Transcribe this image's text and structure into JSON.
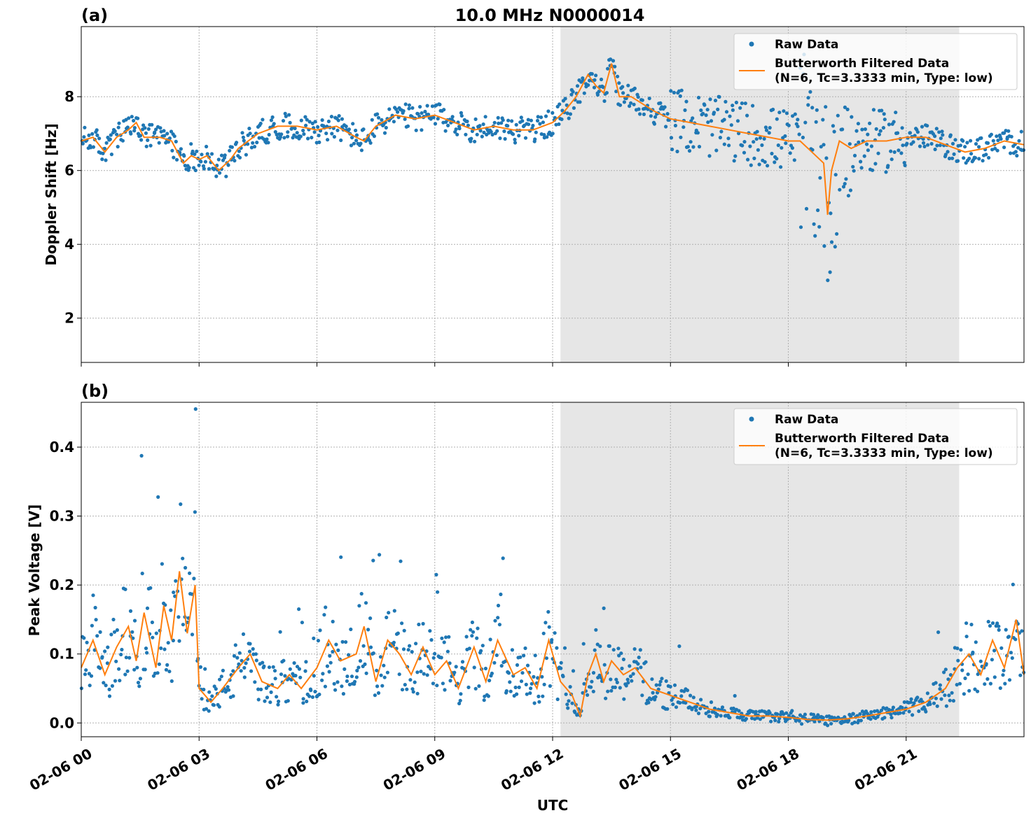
{
  "figure": {
    "suptitle": "10.0 MHz N0000014",
    "xlabel": "UTC",
    "x_ticklabels": [
      "02-06 00",
      "02-06 03",
      "02-06 06",
      "02-06 09",
      "02-06 12",
      "02-06 15",
      "02-06 18",
      "02-06 21"
    ],
    "colors": {
      "raw": "#1f77b4",
      "filtered": "#ff7f0e",
      "shade": "#e6e6e6",
      "grid": "#b0b0b0"
    }
  },
  "chart_data": [
    {
      "type": "scatter",
      "panel_label": "(a)",
      "ylabel": "Doppler Shift [Hz]",
      "xlim": [
        0,
        24
      ],
      "ylim": [
        0.8,
        9.9
      ],
      "yticks": [
        2,
        4,
        6,
        8
      ],
      "x_unit": "hours UTC on 02-06",
      "shaded_interval": [
        12.2,
        22.35
      ],
      "grid": true,
      "legend_position": "top-right",
      "legend": [
        "Raw Data",
        "Butterworth Filtered Data\n(N=6, Tc=3.3333 min, Type: low)"
      ],
      "series": [
        {
          "name": "Butterworth Filtered Data\n(N=6, Tc=3.3333 min, Type: low)",
          "x": [
            0.0,
            0.3,
            0.6,
            0.9,
            1.2,
            1.4,
            1.6,
            2.0,
            2.3,
            2.6,
            2.8,
            3.0,
            3.2,
            3.5,
            3.8,
            4.0,
            4.5,
            5.0,
            5.5,
            6.0,
            6.5,
            7.0,
            7.2,
            7.5,
            8.0,
            8.5,
            9.0,
            9.5,
            10.0,
            10.5,
            11.0,
            11.5,
            12.0,
            12.3,
            12.6,
            12.9,
            13.1,
            13.3,
            13.5,
            13.7,
            14.0,
            14.3,
            14.6,
            15.0,
            15.5,
            16.0,
            16.5,
            17.0,
            17.5,
            18.0,
            18.3,
            18.6,
            18.9,
            19.0,
            19.1,
            19.3,
            19.6,
            20.0,
            20.5,
            21.0,
            21.5,
            22.0,
            22.5,
            23.0,
            23.5,
            24.0
          ],
          "y": [
            6.8,
            6.9,
            6.5,
            6.9,
            7.1,
            7.3,
            6.9,
            6.9,
            6.8,
            6.2,
            6.4,
            6.3,
            6.4,
            6.0,
            6.3,
            6.6,
            7.0,
            7.2,
            7.2,
            7.1,
            7.2,
            6.9,
            6.8,
            7.2,
            7.5,
            7.4,
            7.5,
            7.3,
            7.1,
            7.2,
            7.1,
            7.1,
            7.3,
            7.6,
            8.0,
            8.6,
            8.3,
            8.1,
            8.9,
            8.0,
            8.0,
            7.8,
            7.6,
            7.4,
            7.3,
            7.2,
            7.1,
            7.0,
            6.9,
            6.8,
            6.8,
            6.5,
            6.2,
            4.8,
            6.0,
            6.8,
            6.6,
            6.8,
            6.8,
            6.9,
            6.9,
            6.7,
            6.5,
            6.6,
            6.8,
            6.7
          ]
        }
      ]
    },
    {
      "type": "scatter",
      "panel_label": "(b)",
      "ylabel": "Peak Voltage [V]",
      "xlim": [
        0,
        24
      ],
      "ylim": [
        -0.02,
        0.465
      ],
      "yticks": [
        0.0,
        0.1,
        0.2,
        0.3,
        0.4
      ],
      "x_unit": "hours UTC on 02-06",
      "shaded_interval": [
        12.2,
        22.35
      ],
      "grid": true,
      "legend_position": "top-right",
      "legend": [
        "Raw Data",
        "Butterworth Filtered Data\n(N=6, Tc=3.3333 min, Type: low)"
      ],
      "series": [
        {
          "name": "Butterworth Filtered Data\n(N=6, Tc=3.3333 min, Type: low)",
          "x": [
            0.0,
            0.3,
            0.6,
            0.9,
            1.2,
            1.4,
            1.6,
            1.9,
            2.1,
            2.3,
            2.5,
            2.7,
            2.9,
            3.0,
            3.3,
            3.6,
            4.0,
            4.3,
            4.6,
            5.0,
            5.3,
            5.6,
            6.0,
            6.3,
            6.6,
            7.0,
            7.2,
            7.5,
            7.8,
            8.1,
            8.4,
            8.7,
            9.0,
            9.3,
            9.6,
            10.0,
            10.3,
            10.6,
            11.0,
            11.3,
            11.6,
            11.9,
            12.2,
            12.5,
            12.7,
            12.9,
            13.1,
            13.3,
            13.5,
            13.8,
            14.1,
            14.5,
            15.0,
            15.5,
            16.0,
            16.5,
            17.0,
            17.5,
            18.0,
            18.5,
            19.0,
            19.5,
            20.0,
            20.5,
            21.0,
            21.5,
            22.0,
            22.3,
            22.6,
            22.9,
            23.2,
            23.5,
            23.8,
            24.0
          ],
          "y": [
            0.08,
            0.12,
            0.07,
            0.11,
            0.14,
            0.09,
            0.16,
            0.08,
            0.17,
            0.12,
            0.22,
            0.13,
            0.2,
            0.05,
            0.03,
            0.05,
            0.08,
            0.1,
            0.06,
            0.05,
            0.07,
            0.05,
            0.08,
            0.12,
            0.09,
            0.1,
            0.14,
            0.06,
            0.12,
            0.1,
            0.07,
            0.11,
            0.07,
            0.09,
            0.05,
            0.11,
            0.06,
            0.12,
            0.07,
            0.08,
            0.05,
            0.12,
            0.06,
            0.04,
            0.01,
            0.07,
            0.1,
            0.06,
            0.09,
            0.07,
            0.08,
            0.05,
            0.04,
            0.03,
            0.02,
            0.015,
            0.01,
            0.01,
            0.008,
            0.005,
            0.004,
            0.006,
            0.01,
            0.015,
            0.02,
            0.03,
            0.05,
            0.08,
            0.1,
            0.07,
            0.12,
            0.08,
            0.15,
            0.07
          ]
        }
      ]
    }
  ]
}
